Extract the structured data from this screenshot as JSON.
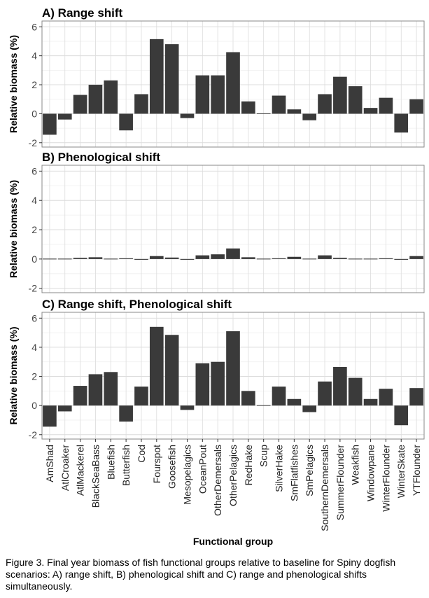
{
  "chart_data": [
    {
      "type": "bar",
      "title": "A) Range shift",
      "ylabel": "Relative biomass (%)",
      "xlabel": "",
      "ylim": [
        -2.3,
        6.4
      ],
      "yticks": [
        -2,
        0,
        2,
        4,
        6
      ],
      "grid": true,
      "categories": [
        "AmShad",
        "AtlCroaker",
        "AtlMackerel",
        "BlackSeaBass",
        "Bluefish",
        "Butterfish",
        "Cod",
        "Fourspot",
        "Goosefish",
        "Mesopelagics",
        "OceanPout",
        "OtherDemersals",
        "OtherPelagics",
        "RedHake",
        "Scup",
        "SilverHake",
        "SmFlatfishes",
        "SmPelagics",
        "SouthernDemersals",
        "SummerFlounder",
        "Weakfish",
        "Windowpane",
        "WinterFlounder",
        "WinterSkate",
        "YTFlounder"
      ],
      "values": [
        -1.45,
        -0.4,
        1.3,
        2.0,
        2.3,
        -1.15,
        1.35,
        5.15,
        4.8,
        -0.3,
        2.65,
        2.65,
        4.25,
        0.85,
        0.02,
        1.25,
        0.3,
        -0.45,
        1.35,
        2.55,
        1.9,
        0.4,
        1.1,
        -1.3,
        1.0
      ]
    },
    {
      "type": "bar",
      "title": "B) Phenological shift",
      "ylabel": "Relative biomass (%)",
      "xlabel": "",
      "ylim": [
        -2.3,
        6.4
      ],
      "yticks": [
        -2,
        0,
        2,
        4,
        6
      ],
      "grid": true,
      "categories": [
        "AmShad",
        "AtlCroaker",
        "AtlMackerel",
        "BlackSeaBass",
        "Bluefish",
        "Butterfish",
        "Cod",
        "Fourspot",
        "Goosefish",
        "Mesopelagics",
        "OceanPout",
        "OtherDemersals",
        "OtherPelagics",
        "RedHake",
        "Scup",
        "SilverHake",
        "SmFlatfishes",
        "SmPelagics",
        "SouthernDemersals",
        "SummerFlounder",
        "Weakfish",
        "Windowpane",
        "WinterFlounder",
        "WinterSkate",
        "YTFlounder"
      ],
      "values": [
        0.0,
        0.0,
        0.08,
        0.12,
        0.0,
        0.05,
        -0.05,
        0.2,
        0.1,
        -0.05,
        0.25,
        0.32,
        0.72,
        0.12,
        0.0,
        0.05,
        0.15,
        0.0,
        0.25,
        0.08,
        0.0,
        0.0,
        0.05,
        -0.05,
        0.2
      ]
    },
    {
      "type": "bar",
      "title": "C) Range shift, Phenological shift",
      "ylabel": "Relative biomass (%)",
      "xlabel": "Functional group",
      "ylim": [
        -2.3,
        6.4
      ],
      "yticks": [
        -2,
        0,
        2,
        4,
        6
      ],
      "grid": true,
      "categories": [
        "AmShad",
        "AtlCroaker",
        "AtlMackerel",
        "BlackSeaBass",
        "Bluefish",
        "Butterfish",
        "Cod",
        "Fourspot",
        "Goosefish",
        "Mesopelagics",
        "OceanPout",
        "OtherDemersals",
        "OtherPelagics",
        "RedHake",
        "Scup",
        "SilverHake",
        "SmFlatfishes",
        "SmPelagics",
        "SouthernDemersals",
        "SummerFlounder",
        "Weakfish",
        "Windowpane",
        "WinterFlounder",
        "WinterSkate",
        "YTFlounder"
      ],
      "values": [
        -1.45,
        -0.4,
        1.35,
        2.15,
        2.3,
        -1.1,
        1.3,
        5.4,
        4.85,
        -0.3,
        2.9,
        3.0,
        5.1,
        1.0,
        0.02,
        1.3,
        0.45,
        -0.45,
        1.65,
        2.65,
        1.9,
        0.45,
        1.15,
        -1.35,
        1.2
      ]
    }
  ],
  "caption": "Figure 3. Final year biomass of fish functional groups relative to baseline for Spiny dogfish scenarios: A) range shift, B) phenological shift and C) range and phenological shifts simultaneously.",
  "colors": {
    "bar": "#3a3a3a",
    "grid_major": "#dcdcdc",
    "grid_minor": "#efefef",
    "panel_border": "#8a8a8a"
  }
}
